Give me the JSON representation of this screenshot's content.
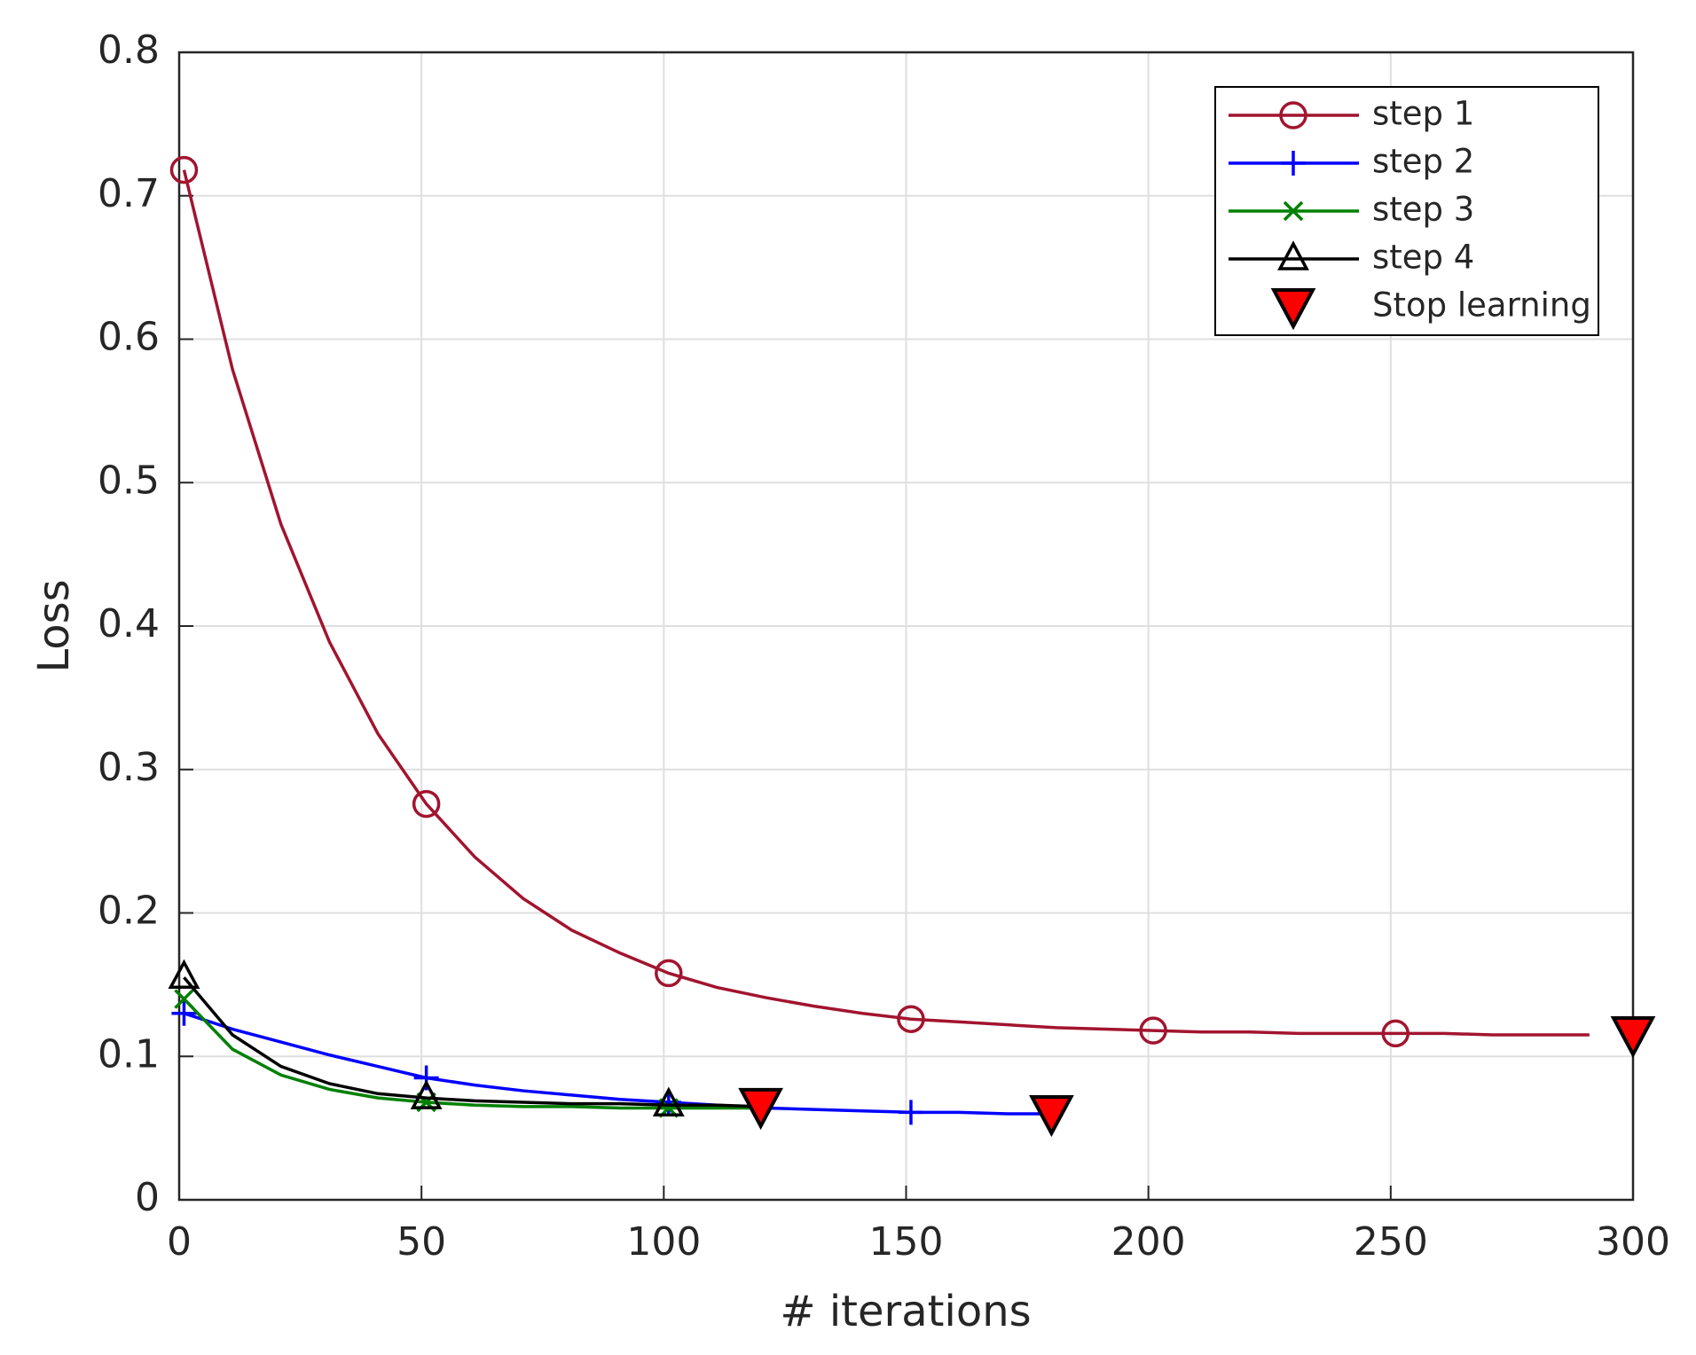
{
  "chart_data": {
    "type": "line",
    "xlabel": "# iterations",
    "ylabel": "Loss",
    "xlim": [
      0,
      300
    ],
    "ylim": [
      0,
      0.8
    ],
    "xticks": [
      0,
      50,
      100,
      150,
      200,
      250,
      300
    ],
    "yticks": [
      0,
      0.1,
      0.2,
      0.3,
      0.4,
      0.5,
      0.6,
      0.7,
      0.8
    ],
    "grid": true,
    "legend_position": "upper right",
    "series": [
      {
        "name": "step 1",
        "color": "#a2142f",
        "marker": "circle",
        "x": [
          1,
          11,
          21,
          31,
          41,
          51,
          61,
          71,
          81,
          91,
          101,
          111,
          121,
          131,
          141,
          151,
          161,
          171,
          181,
          191,
          201,
          211,
          221,
          231,
          241,
          251,
          261,
          271,
          281,
          291
        ],
        "values": [
          0.718,
          0.579,
          0.471,
          0.389,
          0.325,
          0.276,
          0.239,
          0.21,
          0.188,
          0.172,
          0.158,
          0.148,
          0.141,
          0.135,
          0.13,
          0.126,
          0.124,
          0.122,
          0.12,
          0.119,
          0.118,
          0.117,
          0.117,
          0.116,
          0.116,
          0.116,
          0.116,
          0.115,
          0.115,
          0.115
        ]
      },
      {
        "name": "step 2",
        "color": "#0000ff",
        "marker": "plus",
        "x": [
          1,
          11,
          21,
          31,
          41,
          51,
          61,
          71,
          81,
          91,
          101,
          111,
          121,
          131,
          141,
          151,
          161,
          171,
          180
        ],
        "values": [
          0.13,
          0.119,
          0.11,
          0.101,
          0.093,
          0.085,
          0.08,
          0.076,
          0.073,
          0.07,
          0.068,
          0.066,
          0.064,
          0.063,
          0.062,
          0.061,
          0.061,
          0.06,
          0.06
        ]
      },
      {
        "name": "step 3",
        "color": "#008000",
        "marker": "x",
        "x": [
          1,
          11,
          21,
          31,
          41,
          51,
          61,
          71,
          81,
          91,
          101,
          111,
          120
        ],
        "values": [
          0.14,
          0.105,
          0.087,
          0.077,
          0.071,
          0.068,
          0.066,
          0.065,
          0.065,
          0.064,
          0.064,
          0.064,
          0.064
        ]
      },
      {
        "name": "step 4",
        "color": "#000000",
        "marker": "triangle",
        "x": [
          1,
          11,
          21,
          31,
          41,
          51,
          61,
          71,
          81,
          91,
          101,
          111,
          120
        ],
        "values": [
          0.155,
          0.115,
          0.093,
          0.081,
          0.074,
          0.071,
          0.069,
          0.068,
          0.067,
          0.067,
          0.066,
          0.066,
          0.065
        ]
      },
      {
        "name": "Stop learning",
        "color": "#ff0000",
        "marker": "triangle-down",
        "line": false,
        "x": [
          120,
          180,
          300
        ],
        "values": [
          0.065,
          0.06,
          0.115
        ]
      }
    ]
  }
}
